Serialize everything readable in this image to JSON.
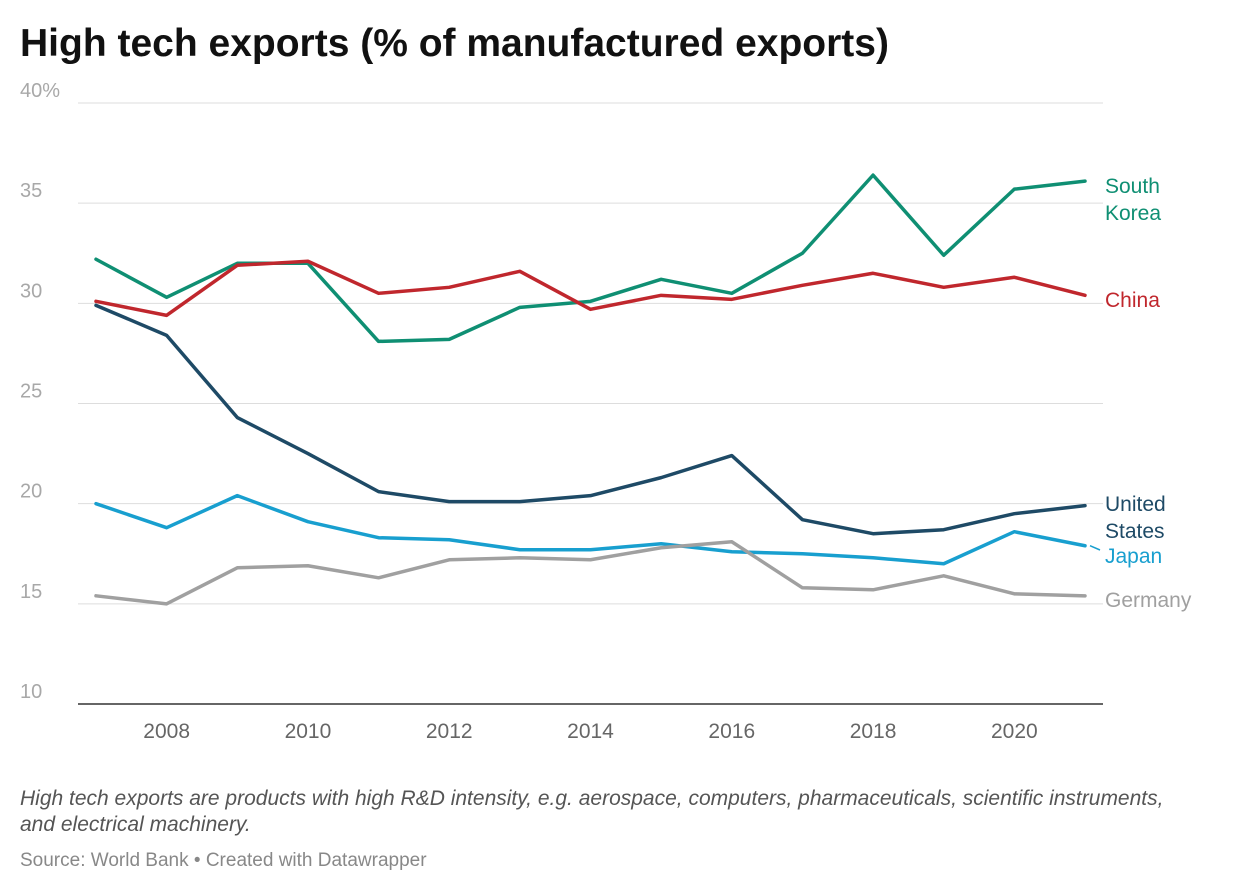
{
  "chart_data": {
    "type": "line",
    "title": "High tech exports (% of manufactured exports)",
    "xlabel": "",
    "ylabel": "",
    "ylim": [
      10,
      40
    ],
    "xlim": [
      2007,
      2021
    ],
    "yticks": [
      10,
      15,
      20,
      25,
      30,
      35,
      40
    ],
    "ytick_labels": [
      "10",
      "15",
      "20",
      "25",
      "30",
      "35",
      "40%"
    ],
    "xticks": [
      2008,
      2010,
      2012,
      2014,
      2016,
      2018,
      2020
    ],
    "xtick_labels": [
      "2008",
      "2010",
      "2012",
      "2014",
      "2016",
      "2018",
      "2020"
    ],
    "grid": true,
    "legend": "direct labels at right",
    "x": [
      2007,
      2008,
      2009,
      2010,
      2011,
      2012,
      2013,
      2014,
      2015,
      2016,
      2017,
      2018,
      2019,
      2020,
      2021
    ],
    "series": [
      {
        "name": "South Korea",
        "label_lines": [
          "South",
          "Korea"
        ],
        "color": "#0f8f73",
        "values": [
          32.2,
          30.3,
          32.0,
          32.0,
          28.1,
          28.2,
          29.8,
          30.1,
          31.2,
          30.5,
          32.5,
          36.4,
          32.4,
          35.7,
          36.1
        ]
      },
      {
        "name": "China",
        "label_lines": [
          "China"
        ],
        "color": "#c0272d",
        "values": [
          30.1,
          29.4,
          31.9,
          32.1,
          30.5,
          30.8,
          31.6,
          29.7,
          30.4,
          30.2,
          30.9,
          31.5,
          30.8,
          31.3,
          30.4
        ]
      },
      {
        "name": "United States",
        "label_lines": [
          "United",
          "States"
        ],
        "color": "#1e4a66",
        "values": [
          29.9,
          28.4,
          24.3,
          22.5,
          20.6,
          20.1,
          20.1,
          20.4,
          21.3,
          22.4,
          19.2,
          18.5,
          18.7,
          19.5,
          19.9
        ]
      },
      {
        "name": "Japan",
        "label_lines": [
          "Japan"
        ],
        "color": "#189fcf",
        "values": [
          20.0,
          18.8,
          20.4,
          19.1,
          18.3,
          18.2,
          17.7,
          17.7,
          18.0,
          17.6,
          17.5,
          17.3,
          17.0,
          18.6,
          17.9
        ]
      },
      {
        "name": "Germany",
        "label_lines": [
          "Germany"
        ],
        "color": "#a0a0a0",
        "values": [
          15.4,
          15.0,
          16.8,
          16.9,
          16.3,
          17.2,
          17.3,
          17.2,
          17.8,
          18.1,
          15.8,
          15.7,
          16.4,
          15.5,
          15.4
        ]
      }
    ]
  },
  "notes": {
    "description": "High tech exports are products with high R&D intensity, e.g. aerospace, computers, pharmaceuticals, scientific instruments, and electrical machinery.",
    "source": "Source: World Bank • Created with Datawrapper"
  }
}
